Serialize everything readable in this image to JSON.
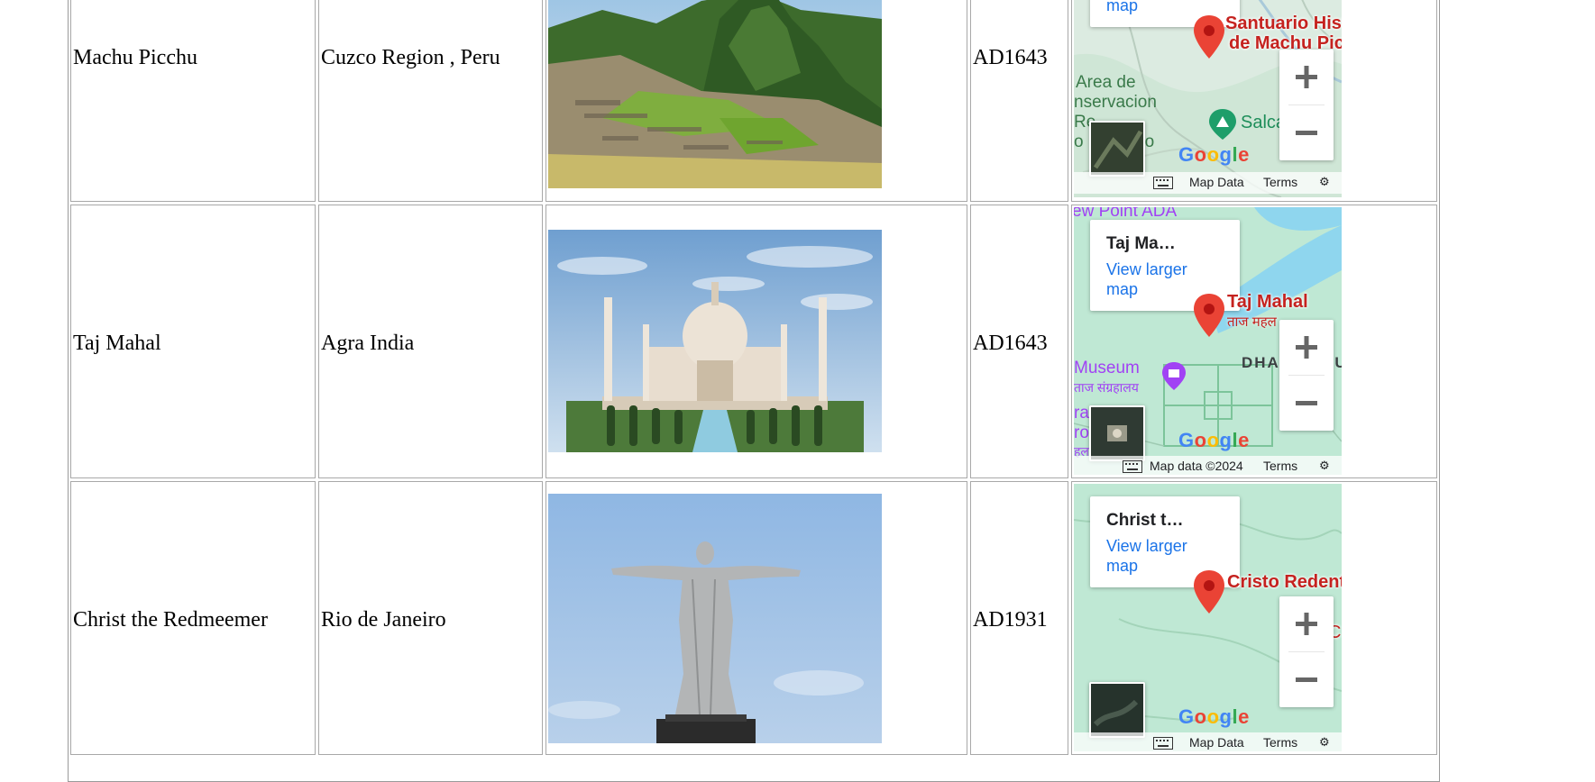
{
  "rows": [
    {
      "name": "Machu Picchu",
      "location": "Cuzco Region , Peru",
      "year": "AD1643",
      "map": {
        "card_link": "map",
        "pin_label_1": "Santuario Hist",
        "pin_label_2": "de Machu Pic",
        "area_text": [
          "Area de",
          "nservacion",
          "Re",
          "o",
          "ao"
        ],
        "poi_label": "Salca",
        "attribution": "Map Data",
        "terms": "Terms",
        "google": "Google"
      }
    },
    {
      "name": "Taj Mahal",
      "location": "Agra India",
      "year": "AD1643",
      "map": {
        "card_title": "Taj Ma…",
        "card_link": "View larger map",
        "pin_label": "Taj Mahal",
        "pin_sub": "ताज महल",
        "top_text": "ew Point ADA",
        "district": "DHA",
        "district_tail": "PU",
        "museum": "Museum",
        "museum_sub": "ताज संग्रहालय",
        "left_frag_1": "ra",
        "left_frag_2": "ro",
        "left_frag_3": "हल अ",
        "attribution": "Map data ©2024",
        "terms": "Terms",
        "google": "Google"
      }
    },
    {
      "name": "Christ the Redmeemer",
      "location": "Rio de Janeiro",
      "year": "AD1931",
      "map": {
        "card_title": "Christ t…",
        "card_link": "View larger map",
        "pin_label": "Cristo Redent",
        "edge_label": "C",
        "attribution": "Map Data",
        "terms": "Terms",
        "google": "Google"
      }
    }
  ],
  "colors": {
    "map_green": "#bfe8d4",
    "map_water": "#8fd6ee",
    "pin_red": "#ea4335",
    "link_blue": "#1a73e8",
    "poi_purple": "#a142f4"
  }
}
